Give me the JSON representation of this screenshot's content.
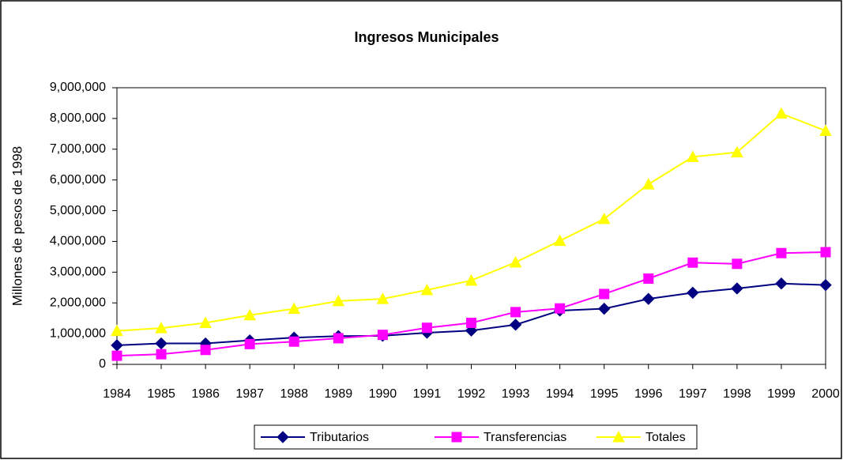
{
  "chart_data": {
    "type": "line",
    "title": "Ingresos Municipales",
    "y_label": "Millones de pesos de 1998",
    "categories": [
      "1984",
      "1985",
      "1986",
      "1987",
      "1988",
      "1989",
      "1990",
      "1991",
      "1992",
      "1993",
      "1994",
      "1995",
      "1996",
      "1997",
      "1998",
      "1999",
      "2000"
    ],
    "series": [
      {
        "name": "Tributarios",
        "color": "#000080",
        "marker": "diamond",
        "values": [
          620000,
          680000,
          680000,
          780000,
          870000,
          920000,
          930000,
          1030000,
          1100000,
          1290000,
          1750000,
          1810000,
          2130000,
          2330000,
          2470000,
          2630000,
          2580000
        ]
      },
      {
        "name": "Transferencias",
        "color": "#ff00ff",
        "marker": "square",
        "values": [
          280000,
          330000,
          470000,
          660000,
          740000,
          850000,
          960000,
          1190000,
          1350000,
          1700000,
          1820000,
          2290000,
          2790000,
          3310000,
          3270000,
          3620000,
          3650000
        ]
      },
      {
        "name": "Totales",
        "color": "#ffff00",
        "marker": "triangle",
        "values": [
          1090000,
          1180000,
          1350000,
          1600000,
          1810000,
          2060000,
          2130000,
          2420000,
          2730000,
          3320000,
          4020000,
          4730000,
          5860000,
          6750000,
          6900000,
          8160000,
          7600000
        ]
      }
    ],
    "ylim": [
      0,
      9000000
    ],
    "yticks": [
      0,
      {
        "value": 1000000,
        "label": "1,000,000"
      },
      {
        "value": 2000000,
        "label": "2,000,000"
      },
      {
        "value": 3000000,
        "label": "3,000,000"
      },
      {
        "value": 4000000,
        "label": "4,000,000"
      },
      {
        "value": 5000000,
        "label": "5,000,000"
      },
      {
        "value": 6000000,
        "label": "6,000,000"
      },
      {
        "value": 7000000,
        "label": "7,000,000"
      },
      {
        "value": 8000000,
        "label": "8,000,000"
      },
      {
        "value": 9000000,
        "label": "9,000,000"
      }
    ],
    "grid": false,
    "legend": "bottom"
  }
}
